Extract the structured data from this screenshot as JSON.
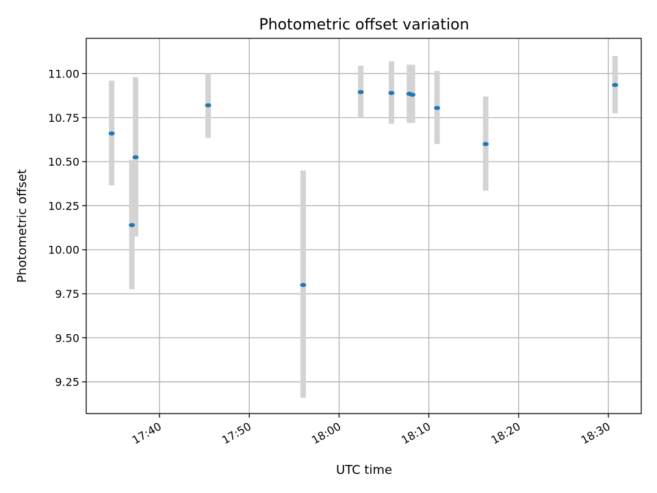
{
  "chart_data": {
    "type": "scatter",
    "title": "Photometric offset variation",
    "xlabel": "UTC time",
    "ylabel": "Photometric offset",
    "x_ticks": [
      "17:40",
      "17:50",
      "18:00",
      "18:10",
      "18:20",
      "18:30"
    ],
    "y_ticks": [
      "9.25",
      "9.50",
      "9.75",
      "10.00",
      "10.25",
      "10.50",
      "10.75",
      "11.00"
    ],
    "xlim": [
      "17:31:50",
      "18:33:40"
    ],
    "ylim": [
      9.07,
      11.2
    ],
    "grid": true,
    "legend": "none",
    "colors": {
      "point": "#1f77b4",
      "error_bar": "#d3d3d3",
      "grid": "#b0b0b0"
    },
    "series": [
      {
        "points": [
          {
            "x": "17:34:40",
            "y": 10.66,
            "yerr_low": 10.365,
            "yerr_high": 10.96
          },
          {
            "x": "17:36:55",
            "y": 10.14,
            "yerr_low": 9.775,
            "yerr_high": 10.51
          },
          {
            "x": "17:37:20",
            "y": 10.525,
            "yerr_low": 10.075,
            "yerr_high": 10.98
          },
          {
            "x": "17:45:25",
            "y": 10.82,
            "yerr_low": 10.635,
            "yerr_high": 11.0
          },
          {
            "x": "17:56:00",
            "y": 9.8,
            "yerr_low": 9.16,
            "yerr_high": 10.45
          },
          {
            "x": "18:02:25",
            "y": 10.895,
            "yerr_low": 10.75,
            "yerr_high": 11.045
          },
          {
            "x": "18:05:50",
            "y": 10.89,
            "yerr_low": 10.715,
            "yerr_high": 11.07
          },
          {
            "x": "18:07:50",
            "y": 10.885,
            "yerr_low": 10.72,
            "yerr_high": 11.05
          },
          {
            "x": "18:08:10",
            "y": 10.88,
            "yerr_low": 10.72,
            "yerr_high": 11.05
          },
          {
            "x": "18:10:55",
            "y": 10.805,
            "yerr_low": 10.6,
            "yerr_high": 11.015
          },
          {
            "x": "18:16:20",
            "y": 10.6,
            "yerr_low": 10.335,
            "yerr_high": 10.87
          },
          {
            "x": "18:30:45",
            "y": 10.935,
            "yerr_low": 10.775,
            "yerr_high": 11.1
          }
        ]
      }
    ]
  }
}
